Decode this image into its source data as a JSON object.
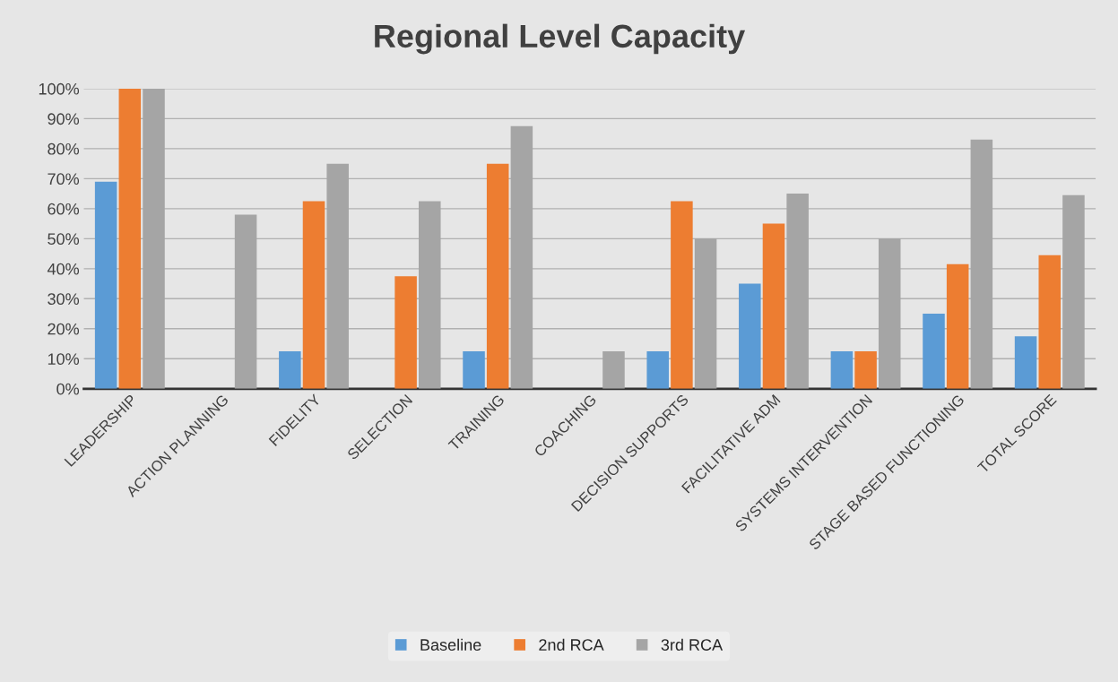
{
  "chart_data": {
    "type": "bar",
    "title": "Regional Level Capacity",
    "categories": [
      "LEADERSHIP",
      "ACTION PLANNING",
      "FIDELITY",
      "SELECTION",
      "TRAINING",
      "COACHING",
      "DECISION SUPPORTS",
      "FACILITATIVE ADM",
      "SYSTEMS INTERVENTION",
      "STAGE BASED FUNCTIONING",
      "TOTAL SCORE"
    ],
    "series": [
      {
        "name": "Baseline",
        "color": "#5b9bd5",
        "values": [
          69,
          0,
          12.5,
          0,
          12.5,
          0,
          12.5,
          35,
          12.5,
          25,
          17.5
        ]
      },
      {
        "name": "2nd RCA",
        "color": "#ed7d31",
        "values": [
          100,
          0,
          62.5,
          37.5,
          75,
          0,
          62.5,
          55,
          12.5,
          41.5,
          44.5
        ]
      },
      {
        "name": "3rd RCA",
        "color": "#a5a5a5",
        "values": [
          100,
          58,
          75,
          62.5,
          87.5,
          12.5,
          50,
          65,
          50,
          83,
          64.5
        ]
      }
    ],
    "ylim": [
      0,
      100
    ],
    "yticks": [
      {
        "value": 0,
        "label": "0%"
      },
      {
        "value": 10,
        "label": "10%"
      },
      {
        "value": 20,
        "label": "20%"
      },
      {
        "value": 30,
        "label": "30%"
      },
      {
        "value": 40,
        "label": "40%"
      },
      {
        "value": 50,
        "label": "50%"
      },
      {
        "value": 60,
        "label": "60%"
      },
      {
        "value": 70,
        "label": "70%"
      },
      {
        "value": 80,
        "label": "80%"
      },
      {
        "value": 90,
        "label": "90%"
      },
      {
        "value": 100,
        "label": "100%"
      }
    ],
    "grid": "y",
    "legend": "bottom"
  }
}
